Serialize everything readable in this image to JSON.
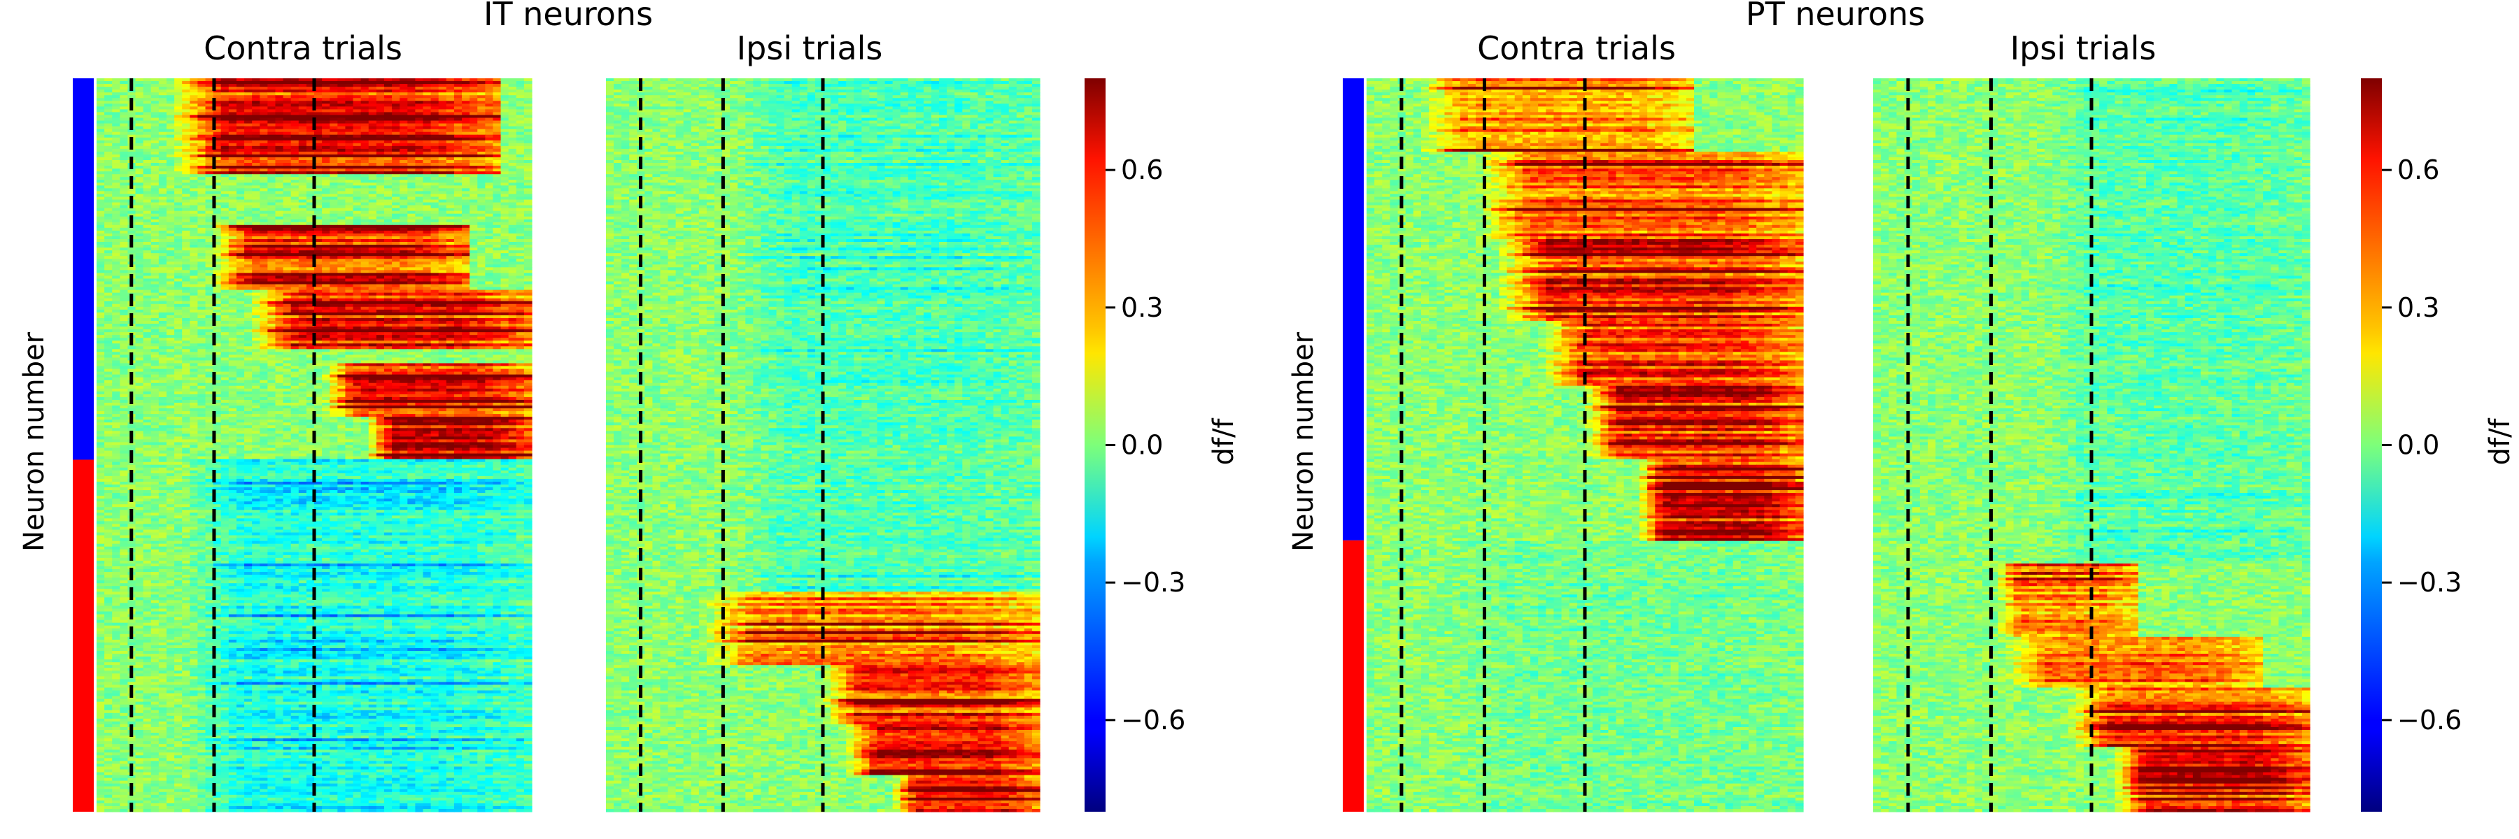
{
  "chart_data": [
    {
      "type": "heatmap",
      "title": "IT neurons",
      "ylabel": "Neuron number",
      "colorbar": {
        "label": "df/f",
        "colormap": "jet",
        "range": [
          -0.8,
          0.8
        ],
        "ticks": [
          0.6,
          0.3,
          0.0,
          -0.3,
          -0.6
        ],
        "tick_labels": [
          "0.6",
          "0.3",
          "0.0",
          "−0.3",
          "−0.6"
        ]
      },
      "group_bar": [
        {
          "color": "#0000ff",
          "fraction": 0.52
        },
        {
          "color": "#ff0000",
          "fraction": 0.48
        }
      ],
      "panels": [
        {
          "title": "Contra trials",
          "event_lines": [
            0.08,
            0.27,
            0.5
          ],
          "n_rows": 260,
          "bands": [
            {
              "rows": [
                0.0,
                0.13
              ],
              "start": 0.17,
              "end": 0.92,
              "peak": 0.75
            },
            {
              "rows": [
                0.2,
                0.29
              ],
              "start": 0.26,
              "end": 0.85,
              "peak": 0.75
            },
            {
              "rows": [
                0.29,
                0.37
              ],
              "start": 0.35,
              "end": 1.0,
              "peak": 0.72
            },
            {
              "rows": [
                0.39,
                0.46
              ],
              "start": 0.52,
              "end": 1.0,
              "peak": 0.78
            },
            {
              "rows": [
                0.46,
                0.52
              ],
              "start": 0.62,
              "end": 1.0,
              "peak": 0.72
            },
            {
              "rows": [
                0.52,
                1.0
              ],
              "start": 0.2,
              "end": 1.0,
              "peak": -0.22
            }
          ]
        },
        {
          "title": "Ipsi trials",
          "event_lines": [
            0.08,
            0.27,
            0.5
          ],
          "n_rows": 260,
          "bands": [
            {
              "rows": [
                0.0,
                0.7
              ],
              "start": 0.3,
              "end": 1.0,
              "peak": -0.12
            },
            {
              "rows": [
                0.7,
                0.8
              ],
              "start": 0.22,
              "end": 1.0,
              "peak": 0.45
            },
            {
              "rows": [
                0.8,
                0.88
              ],
              "start": 0.5,
              "end": 1.0,
              "peak": 0.62
            },
            {
              "rows": [
                0.88,
                0.95
              ],
              "start": 0.55,
              "end": 1.0,
              "peak": 0.78
            },
            {
              "rows": [
                0.95,
                1.0
              ],
              "start": 0.66,
              "end": 1.0,
              "peak": 0.72
            }
          ]
        }
      ]
    },
    {
      "type": "heatmap",
      "title": "PT neurons",
      "ylabel": "Neuron number",
      "colorbar": {
        "label": "df/f",
        "colormap": "jet",
        "range": [
          -0.8,
          0.8
        ],
        "ticks": [
          0.6,
          0.3,
          0.0,
          -0.3,
          -0.6
        ],
        "tick_labels": [
          "0.6",
          "0.3",
          "0.0",
          "−0.3",
          "−0.6"
        ]
      },
      "group_bar": [
        {
          "color": "#0000ff",
          "fraction": 0.63
        },
        {
          "color": "#ff0000",
          "fraction": 0.37
        }
      ],
      "panels": [
        {
          "title": "Contra trials",
          "event_lines": [
            0.08,
            0.27,
            0.5
          ],
          "n_rows": 260,
          "bands": [
            {
              "rows": [
                0.0,
                0.1
              ],
              "start": 0.12,
              "end": 0.75,
              "peak": 0.45
            },
            {
              "rows": [
                0.1,
                0.22
              ],
              "start": 0.25,
              "end": 1.0,
              "peak": 0.55
            },
            {
              "rows": [
                0.22,
                0.33
              ],
              "start": 0.3,
              "end": 1.0,
              "peak": 0.7
            },
            {
              "rows": [
                0.33,
                0.42
              ],
              "start": 0.4,
              "end": 1.0,
              "peak": 0.65
            },
            {
              "rows": [
                0.42,
                0.52
              ],
              "start": 0.5,
              "end": 1.0,
              "peak": 0.72
            },
            {
              "rows": [
                0.52,
                0.63
              ],
              "start": 0.62,
              "end": 1.0,
              "peak": 0.8
            },
            {
              "rows": [
                0.63,
                1.0
              ],
              "start": 0.2,
              "end": 1.0,
              "peak": -0.05
            }
          ]
        },
        {
          "title": "Ipsi trials",
          "event_lines": [
            0.08,
            0.27,
            0.5
          ],
          "n_rows": 260,
          "bands": [
            {
              "rows": [
                0.0,
                0.66
              ],
              "start": 0.4,
              "end": 1.0,
              "peak": -0.1
            },
            {
              "rows": [
                0.66,
                0.76
              ],
              "start": 0.28,
              "end": 0.6,
              "peak": 0.45
            },
            {
              "rows": [
                0.76,
                0.83
              ],
              "start": 0.3,
              "end": 0.9,
              "peak": 0.5
            },
            {
              "rows": [
                0.83,
                0.91
              ],
              "start": 0.45,
              "end": 1.0,
              "peak": 0.68
            },
            {
              "rows": [
                0.91,
                1.0
              ],
              "start": 0.55,
              "end": 1.0,
              "peak": 0.8
            }
          ]
        }
      ]
    }
  ]
}
